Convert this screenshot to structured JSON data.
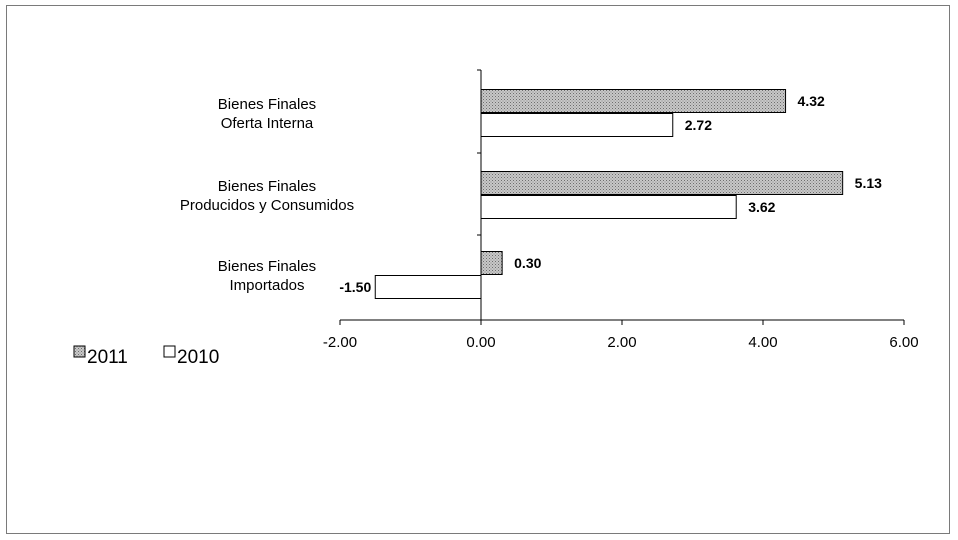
{
  "chart_data": {
    "type": "bar",
    "orientation": "horizontal",
    "categories": [
      [
        "Bienes Finales",
        "Oferta Interna"
      ],
      [
        "Bienes Finales",
        "Producidos y Consumidos"
      ],
      [
        "Bienes Finales",
        "Importados"
      ]
    ],
    "series": [
      {
        "name": "2011",
        "values": [
          4.32,
          5.13,
          0.3
        ],
        "labels": [
          "4.32",
          "5.13",
          "0.30"
        ],
        "fill": "#a9a9a9",
        "pattern": "dotted"
      },
      {
        "name": "2010",
        "values": [
          2.72,
          3.62,
          -1.5
        ],
        "labels": [
          "2.72",
          "3.62",
          "-1.50"
        ],
        "fill": "#ffffff"
      }
    ],
    "xlim": [
      -2,
      6
    ],
    "xticks": [
      -2,
      0,
      2,
      4,
      6
    ],
    "xtick_labels": [
      "-2.00",
      "0.00",
      "2.00",
      "4.00",
      "6.00"
    ],
    "legend": "bottom-left",
    "grid": false,
    "title": "",
    "xlabel": "",
    "ylabel": ""
  }
}
